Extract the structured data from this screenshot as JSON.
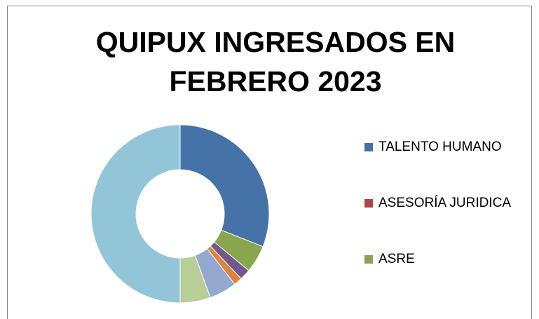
{
  "chart_data": {
    "type": "donut",
    "title": "QUIPUX INGRESADOS EN FEBRERO 2023",
    "categories": [
      "TALENTO HUMANO",
      "ASESORÍA JURIDICA",
      "ASRE",
      null,
      null,
      null,
      null,
      null,
      null
    ],
    "values": [
      31,
      0,
      5,
      2,
      0,
      1.5,
      5,
      5.5,
      50
    ],
    "colors": [
      "#4572a7",
      "#aa4643",
      "#89a54e",
      "#71588f",
      "#4198af",
      "#db843d",
      "#93a9cf",
      "#b9cd96",
      "#92c5d7"
    ],
    "legend": "right"
  }
}
